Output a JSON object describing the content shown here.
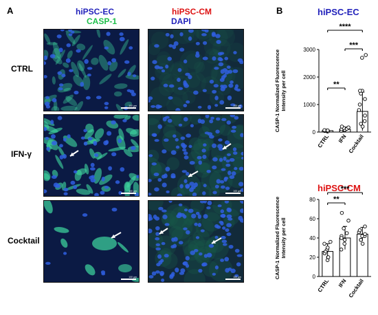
{
  "panel_a": {
    "letter": "A",
    "ec_header": "hiPSC-EC",
    "cm_header": "hiPSC-CM",
    "casp_label": "CASP-1",
    "dapi_label": "DAPI",
    "rows": [
      "CTRL",
      "IFN-γ",
      "Cocktail"
    ],
    "scale_label": "100 µm",
    "colors": {
      "nuclei": "#2f5fe0",
      "casp": "#3fd8a0",
      "background": "#0a1a4a"
    }
  },
  "panel_b": {
    "letter": "B"
  },
  "chart_data": [
    {
      "type": "bar",
      "title": "hiPSC-EC",
      "title_color": "#2222bb",
      "ylabel": "CASP-1 Normalized Fluorescence Intensity per cell",
      "categories": [
        "CTRL",
        "IFN",
        "Cocktail"
      ],
      "values": [
        50,
        100,
        750
      ],
      "errors": [
        20,
        80,
        700
      ],
      "ylim": [
        0,
        3000
      ],
      "yticks": [
        0,
        1000,
        2000,
        3000
      ],
      "points": [
        [
          20,
          30,
          40,
          50,
          55,
          60,
          70
        ],
        [
          40,
          60,
          80,
          100,
          120,
          150,
          170,
          200
        ],
        [
          200,
          300,
          400,
          600,
          800,
          1000,
          1200,
          1400,
          1500,
          2800,
          2700,
          1500
        ]
      ],
      "significance": [
        {
          "from": 0,
          "to": 1,
          "label": "**"
        },
        {
          "from": 1,
          "to": 2,
          "label": "***"
        },
        {
          "from": 0,
          "to": 2,
          "label": "****"
        }
      ]
    },
    {
      "type": "bar",
      "title": "hiPSC-CM",
      "title_color": "#dd1111",
      "ylabel": "CASP-1 Normalized Fluorescence Intensity per cell",
      "categories": [
        "CTRL",
        "IFN",
        "Cocktail"
      ],
      "values": [
        26,
        40,
        44
      ],
      "errors": [
        8,
        12,
        7
      ],
      "ylim": [
        0,
        80
      ],
      "yticks": [
        0,
        20,
        40,
        60,
        80
      ],
      "points": [
        [
          17,
          20,
          24,
          26,
          28,
          30,
          34,
          36,
          20
        ],
        [
          28,
          34,
          38,
          42,
          45,
          50,
          58,
          66,
          40
        ],
        [
          34,
          38,
          42,
          44,
          46,
          48,
          52,
          38,
          42
        ]
      ],
      "significance": [
        {
          "from": 0,
          "to": 1,
          "label": "**"
        },
        {
          "from": 0,
          "to": 2,
          "label": "***"
        }
      ]
    }
  ]
}
